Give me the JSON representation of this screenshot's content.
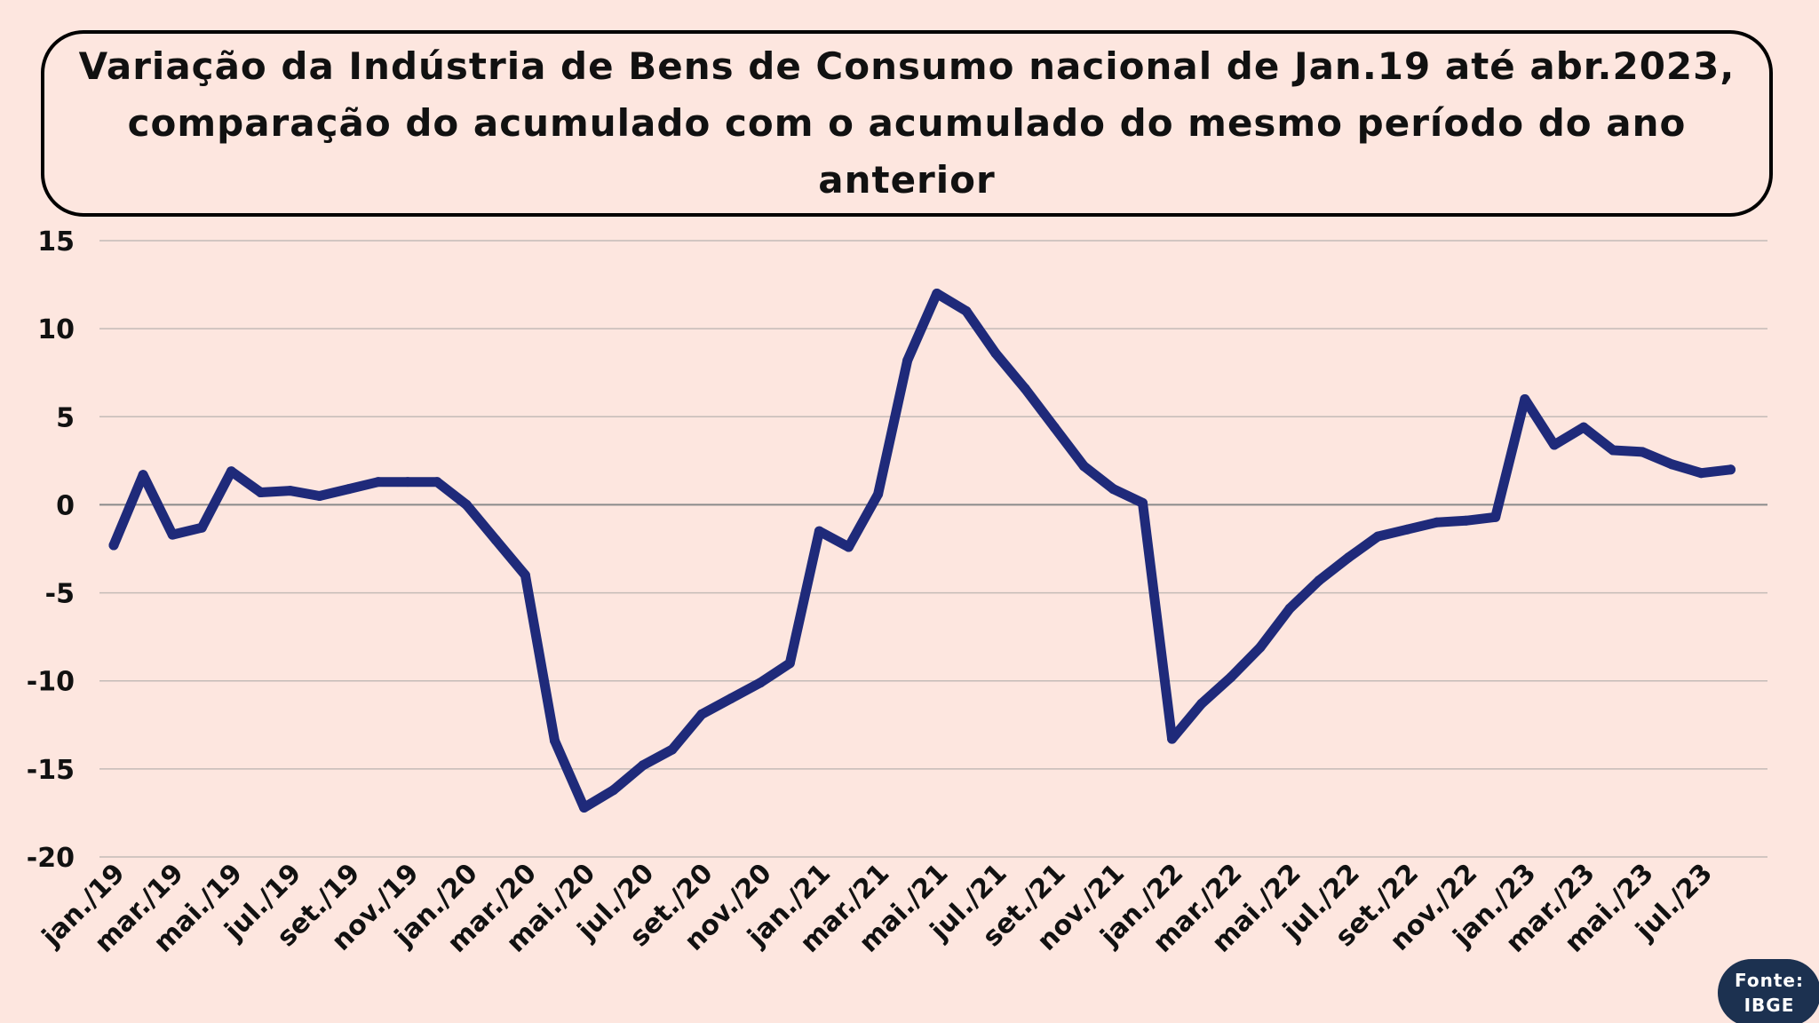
{
  "chart_data": {
    "type": "line",
    "title": "Variação da Indústria de Bens de Consumo nacional de Jan.19 até abr.2023, comparação do acumulado com o acumulado do mesmo período do ano anterior",
    "xlabel": "",
    "ylabel": "",
    "ylim": [
      -20,
      15
    ],
    "yticks": [
      15,
      10,
      5,
      0,
      -5,
      -10,
      -15,
      -20
    ],
    "grid": true,
    "legend": "none",
    "line_color": "#1f2a7a",
    "categories": [
      "jan./19",
      "fev./19",
      "mar./19",
      "abr./19",
      "mai./19",
      "jun./19",
      "jul./19",
      "ago./19",
      "set./19",
      "out./19",
      "nov./19",
      "dez./19",
      "jan./20",
      "fev./20",
      "mar./20",
      "abr./20",
      "mai./20",
      "jun./20",
      "jul./20",
      "ago./20",
      "set./20",
      "out./20",
      "nov./20",
      "dez./20",
      "jan./21",
      "fev./21",
      "mar./21",
      "abr./21",
      "mai./21",
      "jun./21",
      "jul./21",
      "ago./21",
      "set./21",
      "out./21",
      "nov./21",
      "dez./21",
      "jan./22",
      "fev./22",
      "mar./22",
      "abr./22",
      "mai./22",
      "jun./22",
      "jul./22",
      "ago./22",
      "set./22",
      "out./22",
      "nov./22",
      "dez./22",
      "jan./23",
      "fev./23",
      "mar./23",
      "abr./23",
      "mai./23",
      "jun./23",
      "jul./23",
      "ago./23"
    ],
    "x_tick_labels": [
      "jan./19",
      "mar./19",
      "mai./19",
      "jul./19",
      "set./19",
      "nov./19",
      "jan./20",
      "mar./20",
      "mai./20",
      "jul./20",
      "set./20",
      "nov./20",
      "jan./21",
      "mar./21",
      "mai./21",
      "jul./21",
      "set./21",
      "nov./21",
      "jan./22",
      "mar./22",
      "mai./22",
      "jul./22",
      "set./22",
      "nov./22",
      "jan./23",
      "mar./23",
      "mai./23",
      "jul./23"
    ],
    "series": [
      {
        "values": [
          -2.3,
          1.7,
          -1.7,
          -1.3,
          1.9,
          0.7,
          0.8,
          0.5,
          0.9,
          1.3,
          1.3,
          1.3,
          0.0,
          -2.0,
          -4.0,
          -13.4,
          -17.2,
          -16.2,
          -14.8,
          -13.9,
          -11.9,
          -11.0,
          -10.1,
          -9.0,
          -1.5,
          -2.4,
          0.6,
          8.2,
          12.0,
          11.0,
          8.6,
          6.6,
          4.4,
          2.2,
          0.9,
          0.1,
          -13.3,
          -11.3,
          -9.8,
          -8.1,
          -5.9,
          -4.3,
          -3.0,
          -1.8,
          -1.4,
          -1.0,
          -0.9,
          -0.7,
          6.0,
          3.4,
          4.4,
          3.1,
          3.0,
          2.3,
          1.8,
          2.0
        ]
      }
    ]
  },
  "source_badge": {
    "line1": "Fonte:",
    "line2": "IBGE"
  }
}
